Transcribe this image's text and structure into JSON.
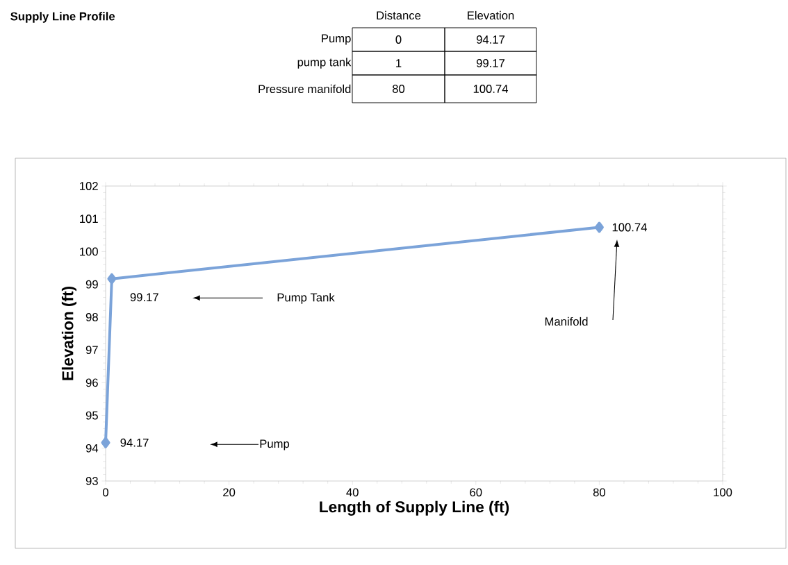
{
  "chart_data": {
    "type": "line",
    "title": "Supply Line Profile",
    "xlabel": "Length of Supply Line (ft)",
    "ylabel": "Elevation (ft)",
    "x": [
      0,
      1,
      80
    ],
    "series": [
      {
        "color": "#7ba3d9",
        "values": [
          94.17,
          99.17,
          100.74
        ]
      }
    ],
    "marker": "diamond",
    "line_style": "solid",
    "data_labels": true,
    "grid": false,
    "xlim": [
      0,
      100
    ],
    "xticks": [
      0,
      20,
      40,
      60,
      80,
      100
    ],
    "ylim": [
      93,
      102
    ],
    "yticks": [
      93,
      94,
      95,
      96,
      97,
      98,
      99,
      100,
      101,
      102
    ],
    "annotations": [
      "Distance",
      "Elevation",
      "Pump",
      "0",
      "94.17",
      "pump tank",
      "1",
      "99.17",
      "Pressure manifold",
      "80",
      "100.74",
      "Pump",
      "Pump Tank",
      "Manifold"
    ]
  }
}
